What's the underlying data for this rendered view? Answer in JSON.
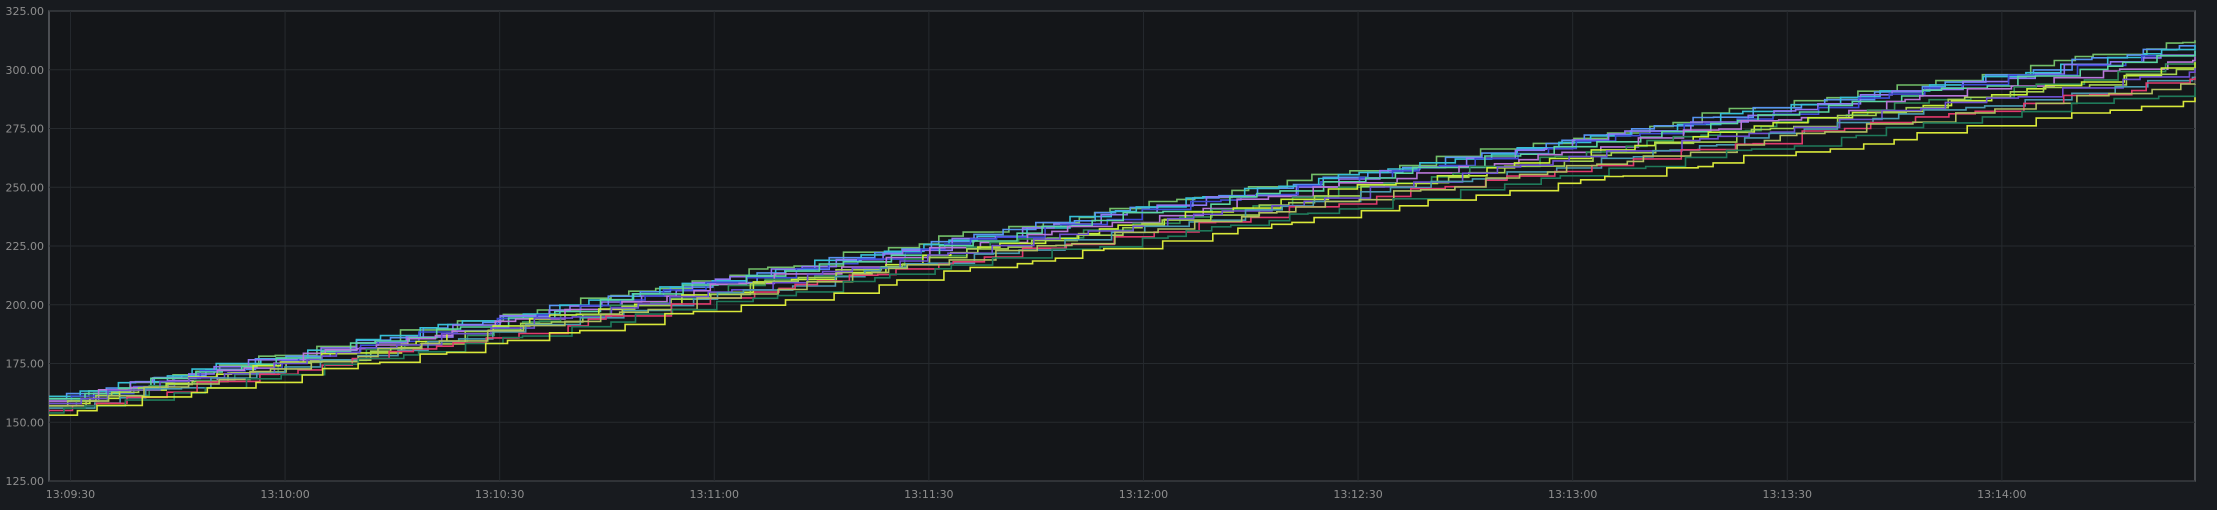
{
  "chart_data": {
    "type": "line",
    "title": "",
    "xlabel": "",
    "ylabel": "",
    "grid": true,
    "legend": "none",
    "background": "#181b1f",
    "plot_background": "#141619",
    "y_ticks": [
      "125.00",
      "150.00",
      "175.00",
      "200.00",
      "225.00",
      "250.00",
      "275.00",
      "300.00",
      "325.00"
    ],
    "ylim": [
      125,
      325
    ],
    "x_ticks": [
      "13:09:30",
      "13:10:00",
      "13:10:30",
      "13:11:00",
      "13:11:30",
      "13:12:00",
      "13:12:30",
      "13:13:00",
      "13:13:30",
      "13:14:00"
    ],
    "x_tick_seconds": [
      30,
      60,
      90,
      120,
      150,
      180,
      210,
      240,
      270,
      300
    ],
    "xlim_seconds": [
      27,
      327
    ],
    "x_start_time": "13:09:27",
    "x_end_time": "13:14:27",
    "series": [
      {
        "color": "#73bf69",
        "start": 161,
        "end": 312
      },
      {
        "color": "#5794f2",
        "start": 160,
        "end": 311
      },
      {
        "color": "#37c0d6",
        "start": 161,
        "end": 310
      },
      {
        "color": "#8f76f4",
        "start": 160,
        "end": 309
      },
      {
        "color": "#3f4bd6",
        "start": 159,
        "end": 308
      },
      {
        "color": "#5ad6a0",
        "start": 160,
        "end": 307
      },
      {
        "color": "#b877d9",
        "start": 159,
        "end": 305
      },
      {
        "color": "#2e8b57",
        "start": 157,
        "end": 303
      },
      {
        "color": "#c8f03a",
        "start": 158,
        "end": 302
      },
      {
        "color": "#a5d152",
        "start": 157,
        "end": 301
      },
      {
        "color": "#6e4fd1",
        "start": 158,
        "end": 300
      },
      {
        "color": "#4a9ab0",
        "start": 156,
        "end": 298
      },
      {
        "color": "#e03a6c",
        "start": 155,
        "end": 296
      },
      {
        "color": "#b0c060",
        "start": 157,
        "end": 295
      },
      {
        "color": "#1f7a5a",
        "start": 154,
        "end": 292
      },
      {
        "color": "#d9e83a",
        "start": 153,
        "end": 288
      }
    ]
  }
}
